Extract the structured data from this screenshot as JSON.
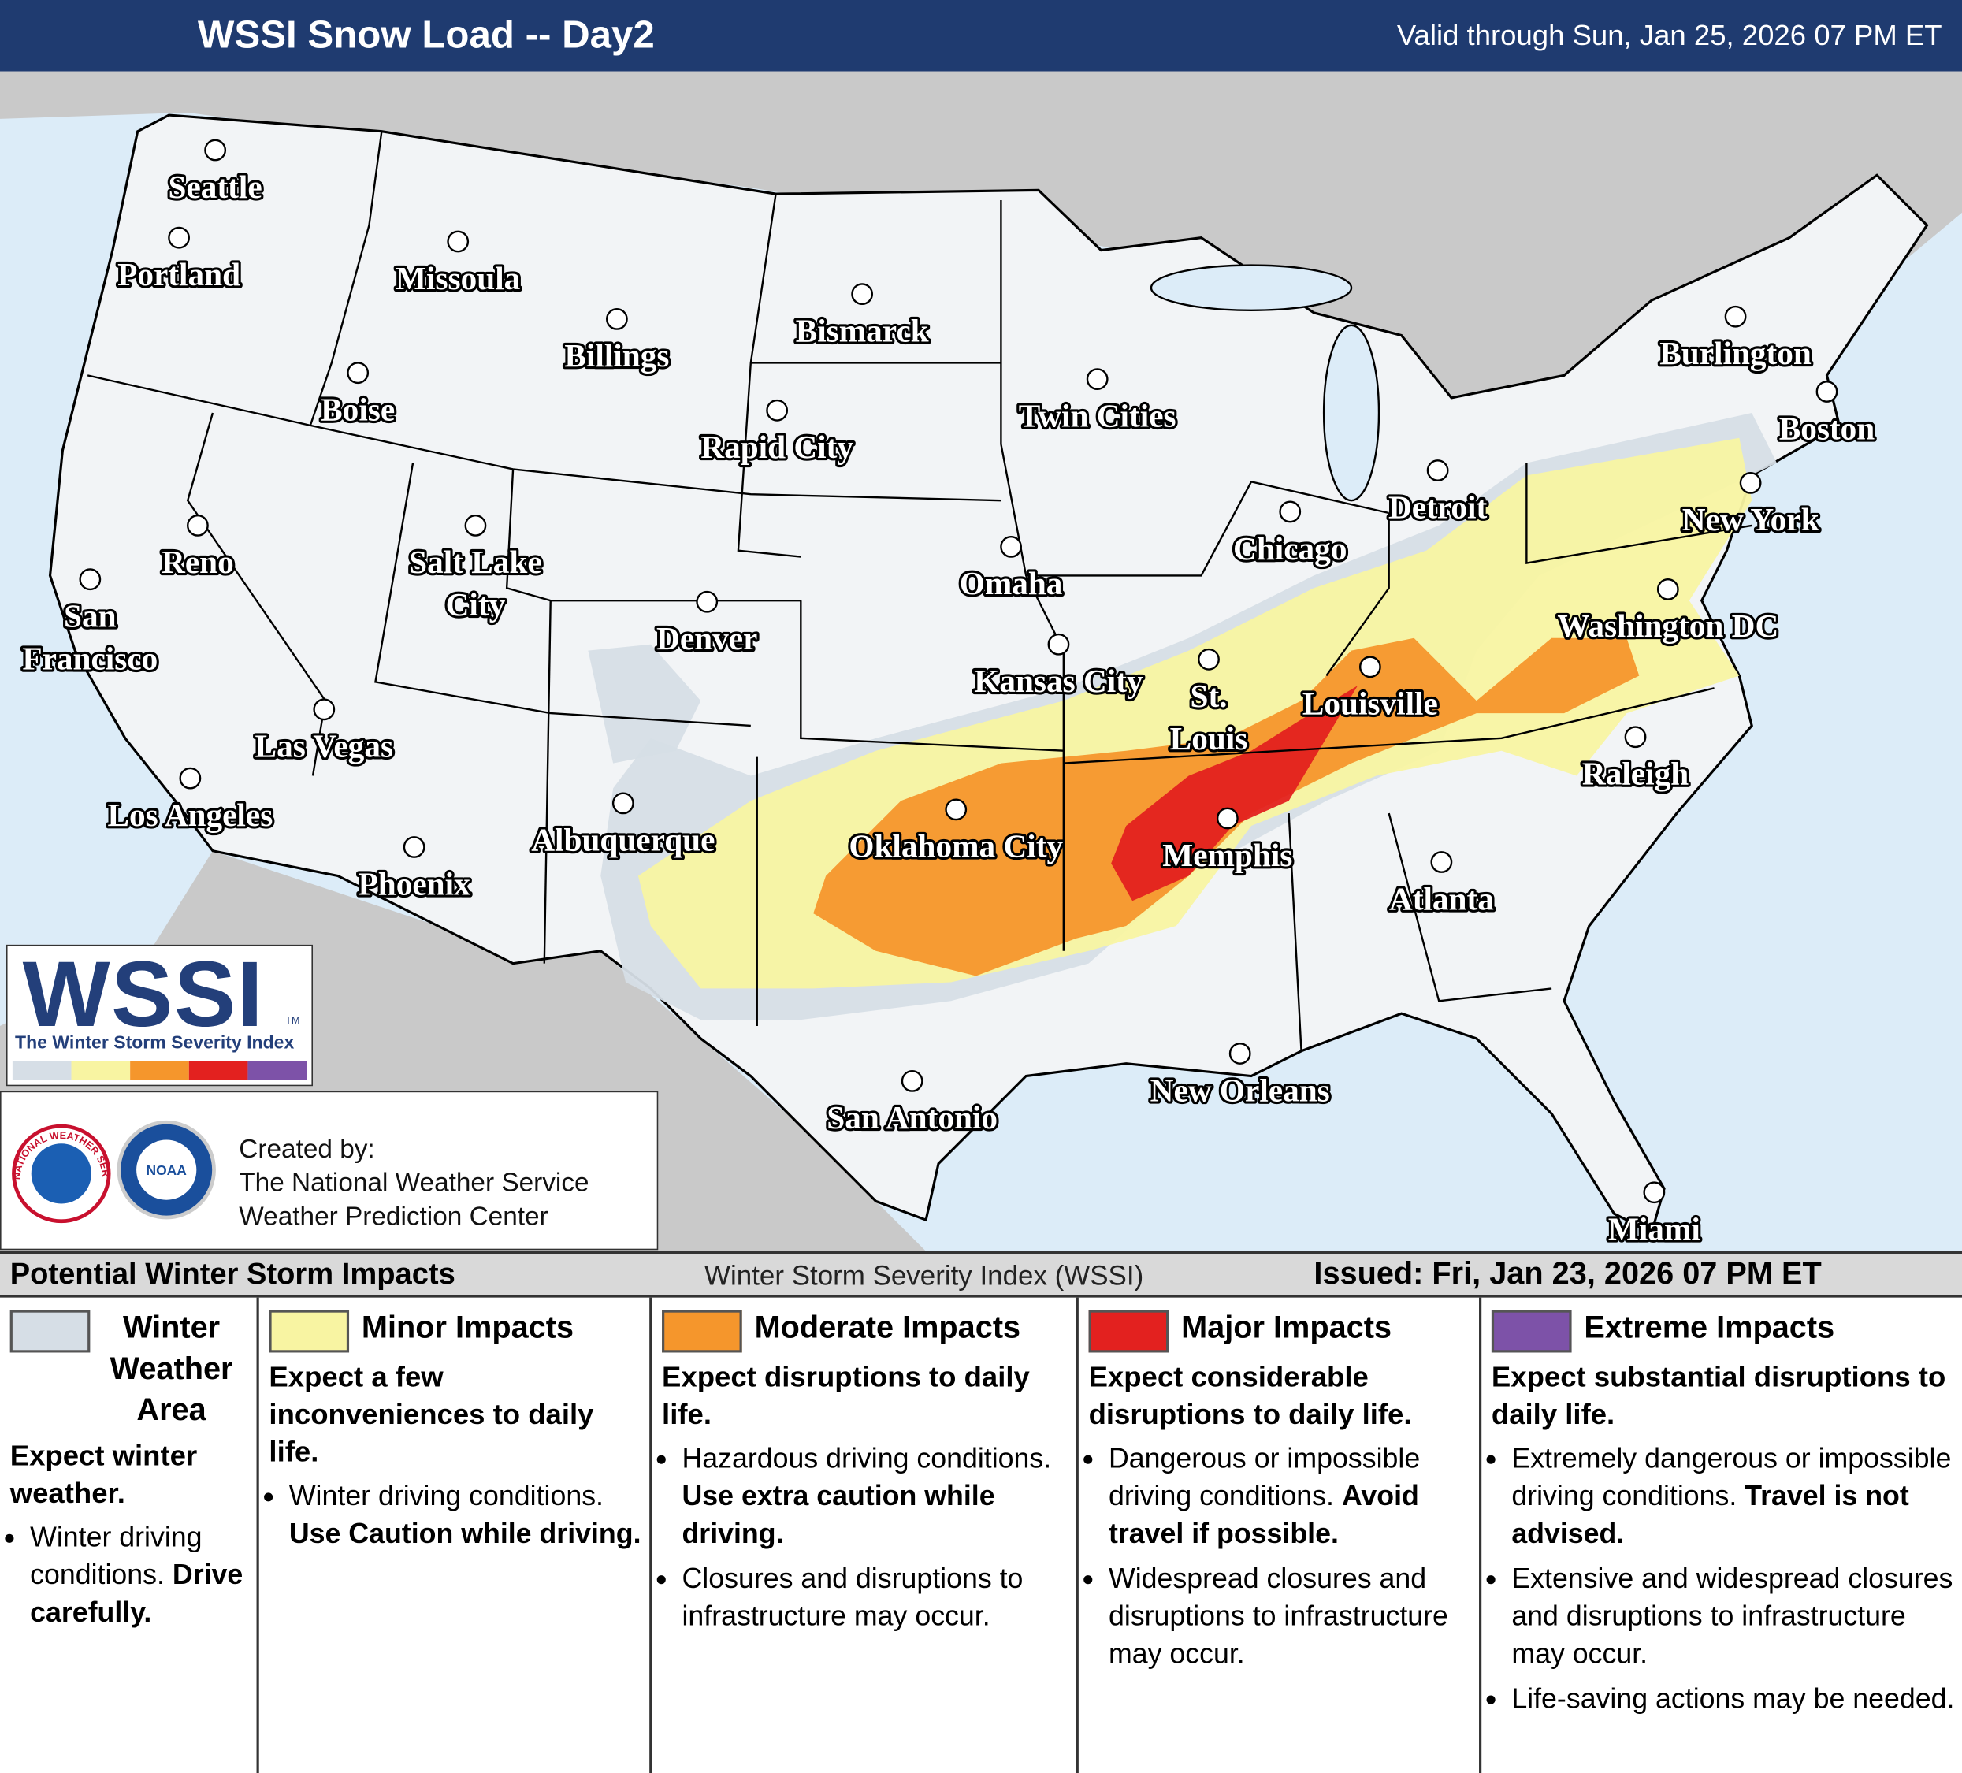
{
  "header": {
    "title": "WSSI Snow Load -- Day2",
    "valid": "Valid through Sun, Jan 25, 2026 07 PM ET"
  },
  "map": {
    "cities": [
      {
        "lines": [
          "Seattle"
        ]
      },
      {
        "lines": [
          "Portland"
        ]
      },
      {
        "lines": [
          "Missoula"
        ]
      },
      {
        "lines": [
          "Billings"
        ]
      },
      {
        "lines": [
          "Bismarck"
        ]
      },
      {
        "lines": [
          "Boise"
        ]
      },
      {
        "lines": [
          "Rapid City"
        ]
      },
      {
        "lines": [
          "Twin Cities"
        ]
      },
      {
        "lines": [
          "Burlington"
        ]
      },
      {
        "lines": [
          "Boston"
        ]
      },
      {
        "lines": [
          "Reno"
        ]
      },
      {
        "lines": [
          "Salt Lake",
          "City"
        ]
      },
      {
        "lines": [
          "Denver"
        ]
      },
      {
        "lines": [
          "Omaha"
        ]
      },
      {
        "lines": [
          "Chicago"
        ]
      },
      {
        "lines": [
          "Detroit"
        ]
      },
      {
        "lines": [
          "New York"
        ]
      },
      {
        "lines": [
          "San",
          "Francisco"
        ]
      },
      {
        "lines": [
          "Kansas City"
        ]
      },
      {
        "lines": [
          "St.",
          "Louis"
        ]
      },
      {
        "lines": [
          "Louisville"
        ]
      },
      {
        "lines": [
          "Washington DC"
        ]
      },
      {
        "lines": [
          "Las Vegas"
        ]
      },
      {
        "lines": [
          "Los Angeles"
        ]
      },
      {
        "lines": [
          "Raleigh"
        ]
      },
      {
        "lines": [
          "Albuquerque"
        ]
      },
      {
        "lines": [
          "Oklahoma City"
        ]
      },
      {
        "lines": [
          "Memphis"
        ]
      },
      {
        "lines": [
          "Phoenix"
        ]
      },
      {
        "lines": [
          "Atlanta"
        ]
      },
      {
        "lines": [
          "New Orleans"
        ]
      },
      {
        "lines": [
          "San Antonio"
        ]
      },
      {
        "lines": [
          "Miami"
        ]
      }
    ]
  },
  "logo": {
    "text": "WSSI",
    "trademark": "TM",
    "subtitle": "The Winter Storm Severity Index"
  },
  "credits": {
    "nws_logo": "NATIONAL WEATHER SERVICE",
    "noaa_logo": "NOAA",
    "lines": [
      "Created by:",
      "The National Weather Service",
      "Weather Prediction Center"
    ]
  },
  "legend": {
    "title": "Potential Winter Storm Impacts",
    "center": "Winter Storm Severity Index (WSSI)",
    "issued": "Issued: Fri, Jan 23, 2026 07 PM ET",
    "categories": [
      {
        "name": "Winter Weather Area",
        "color": "#d6dee6",
        "summary": "Expect winter weather.",
        "bullets": [
          {
            "text": "Winter driving conditions.",
            "emphasis": "Drive carefully."
          }
        ]
      },
      {
        "name": "Minor Impacts",
        "color": "#f8f4a2",
        "summary": "Expect a few inconveniences to daily life.",
        "bullets": [
          {
            "text": "Winter driving conditions.",
            "emphasis": "Use Caution while driving."
          }
        ]
      },
      {
        "name": "Moderate Impacts",
        "color": "#f5962c",
        "summary": "Expect disruptions to daily life.",
        "bullets": [
          {
            "text": "Hazardous driving conditions.",
            "emphasis": "Use extra caution while driving."
          },
          {
            "text": "Closures and disruptions to infrastructure may occur."
          }
        ]
      },
      {
        "name": "Major Impacts",
        "color": "#e3211f",
        "summary": "Expect considerable disruptions to daily life.",
        "bullets": [
          {
            "text": "Dangerous or impossible driving conditions.",
            "emphasis": "Avoid travel if possible."
          },
          {
            "text": "Widespread closures and disruptions to infrastructure may occur."
          }
        ]
      },
      {
        "name": "Extreme Impacts",
        "color": "#7d52a8",
        "summary": "Expect substantial disruptions to daily life.",
        "bullets": [
          {
            "text": "Extremely dangerous or impossible driving conditions.",
            "emphasis": "Travel is not advised."
          },
          {
            "text": "Extensive and widespread closures and disruptions to infrastructure may occur."
          },
          {
            "text": "Life-saving actions may be needed."
          }
        ]
      }
    ]
  }
}
